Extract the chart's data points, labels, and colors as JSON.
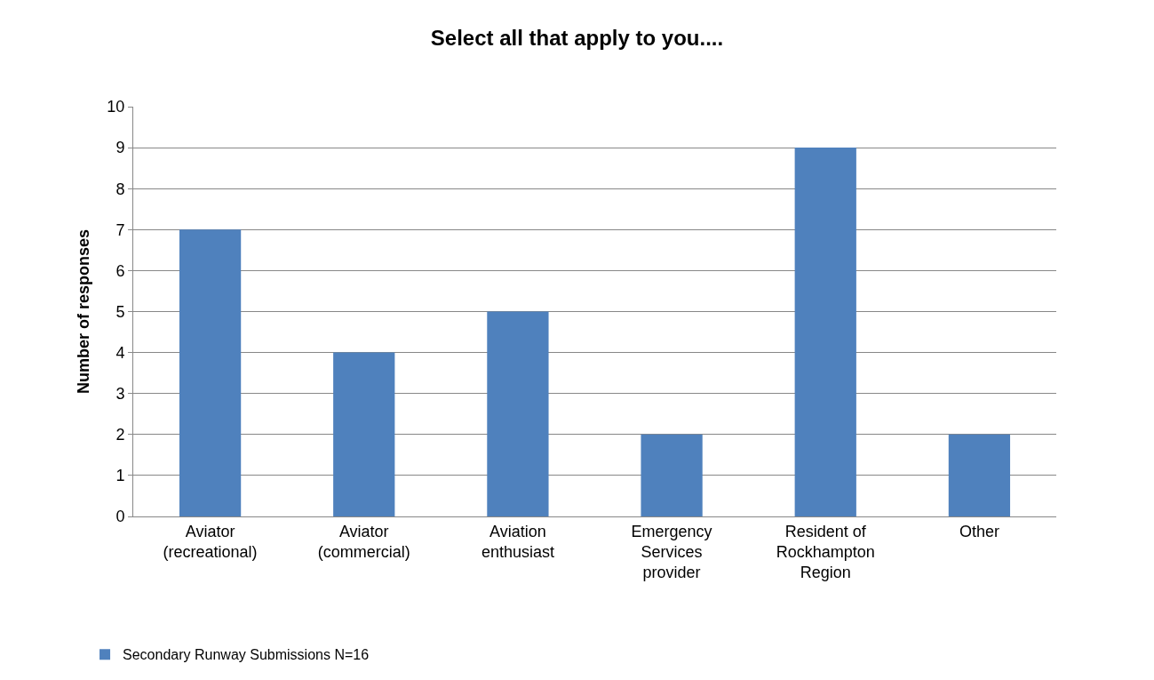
{
  "chart_data": {
    "type": "bar",
    "title": "Select all that apply to you....",
    "ylabel": "Number of responses",
    "categories": [
      "Aviator\n(recreational)",
      "Aviator\n(commercial)",
      "Aviation\nenthusiast",
      "Emergency\nServices\nprovider",
      "Resident of\nRockhampton\nRegion",
      "Other"
    ],
    "series": [
      {
        "name": "Secondary Runway Submissions N=16",
        "color": "#4f81bd",
        "values": [
          7,
          4,
          5,
          2,
          9,
          2
        ]
      }
    ],
    "ylim": [
      0,
      10
    ],
    "yticks": [
      0,
      1,
      2,
      3,
      4,
      5,
      6,
      7,
      8,
      9,
      10
    ],
    "grid": "y",
    "legend": "bottom left"
  }
}
